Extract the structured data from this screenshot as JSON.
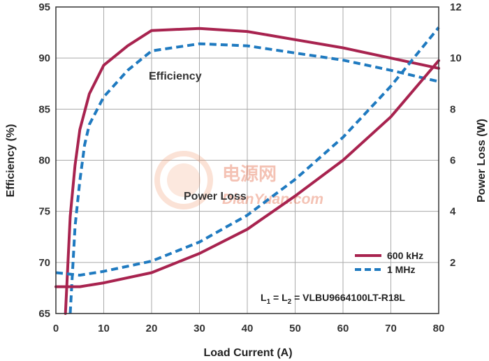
{
  "chart_data": {
    "type": "line",
    "xlabel": "Load Current (A)",
    "ylabel_left": "Efficiency (%)",
    "ylabel_right": "Power Loss (W)",
    "xlim": [
      0,
      80
    ],
    "ylim_left": [
      65,
      95
    ],
    "ylim_right": [
      0,
      12
    ],
    "x_ticks": [
      0,
      10,
      20,
      30,
      40,
      50,
      60,
      70,
      80
    ],
    "y_left_ticks": [
      65,
      70,
      75,
      80,
      85,
      90,
      95
    ],
    "y_right_ticks": [
      2,
      4,
      6,
      8,
      10,
      12
    ],
    "grid": true,
    "legend_position": "bottom-right",
    "colors": {
      "600kHz": "#a8234f",
      "1MHz": "#1f7ac0"
    },
    "annotations": {
      "efficiency": "Efficiency",
      "power_loss": "Power Loss",
      "inductor_l1": "L",
      "inductor_sub1": "1",
      "inductor_eq1": " = L",
      "inductor_sub2": "2",
      "inductor_part": " = VLBU9664100LT-R18L"
    },
    "series": [
      {
        "name": "600 kHz",
        "axis": "left",
        "metric": "efficiency",
        "x": [
          2,
          3,
          4,
          5,
          7,
          10,
          15,
          20,
          30,
          40,
          50,
          60,
          70,
          80
        ],
        "y": [
          65,
          74.5,
          79.5,
          83,
          86.5,
          89.3,
          91.2,
          92.7,
          92.9,
          92.6,
          91.8,
          91,
          90,
          89
        ]
      },
      {
        "name": "1 MHz",
        "axis": "left",
        "metric": "efficiency",
        "x": [
          3,
          4,
          5,
          6,
          7,
          10,
          15,
          20,
          30,
          40,
          50,
          60,
          70,
          80
        ],
        "y": [
          65,
          73.5,
          78,
          81.5,
          83.5,
          86.2,
          88.8,
          90.7,
          91.4,
          91.2,
          90.5,
          89.8,
          88.8,
          87.7
        ]
      },
      {
        "name": "600 kHz",
        "axis": "right",
        "metric": "power_loss",
        "x": [
          0,
          5,
          10,
          20,
          30,
          40,
          50,
          60,
          70,
          80
        ],
        "y": [
          1.05,
          1.05,
          1.2,
          1.6,
          2.35,
          3.3,
          4.6,
          6.0,
          7.7,
          9.9
        ]
      },
      {
        "name": "1 MHz",
        "axis": "right",
        "metric": "power_loss",
        "x": [
          0,
          5,
          10,
          20,
          30,
          40,
          50,
          60,
          70,
          80
        ],
        "y": [
          1.6,
          1.5,
          1.65,
          2.05,
          2.8,
          3.85,
          5.25,
          6.9,
          8.9,
          11.2
        ]
      }
    ],
    "legend": [
      {
        "label": "600 kHz",
        "style": "solid"
      },
      {
        "label": "1 MHz",
        "style": "dashed"
      }
    ]
  },
  "watermark": {
    "line1": "电源网",
    "line2": "DianYuan.com"
  }
}
